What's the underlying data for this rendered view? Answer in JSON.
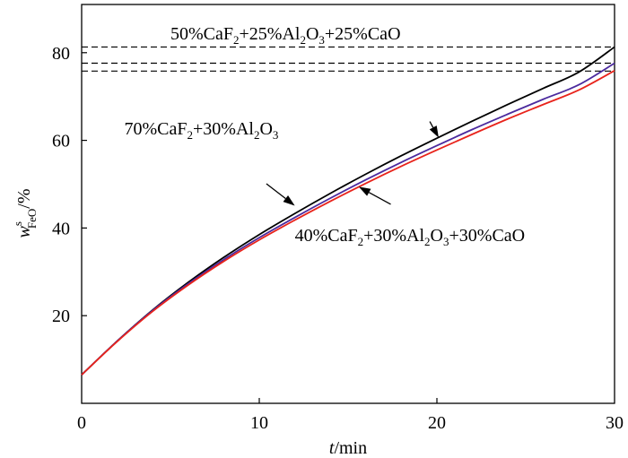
{
  "chart_data": {
    "type": "line",
    "xlabel": {
      "var": "t",
      "unit": "/min"
    },
    "ylabel": {
      "var": "w",
      "sup": "s",
      "sub": "FeO",
      "unit": "/%"
    },
    "xlim": [
      0,
      30
    ],
    "ylim": [
      0,
      91
    ],
    "xticks": [
      0,
      10,
      20,
      30
    ],
    "yticks": [
      20,
      40,
      60,
      80
    ],
    "x_tick_labels": [
      "0",
      "10",
      "20",
      "30"
    ],
    "y_tick_labels": [
      "20",
      "40",
      "60",
      "80"
    ],
    "grid": false,
    "series": [
      {
        "name": "70%CaF2+30%Al2O3",
        "color": "#000000",
        "x": [
          0,
          2,
          4,
          6,
          8,
          10,
          12,
          14,
          16,
          18,
          20,
          22,
          24,
          26,
          28,
          30
        ],
        "y": [
          6.5,
          14.2,
          21.3,
          27.6,
          33.3,
          38.5,
          43.3,
          47.9,
          52.3,
          56.5,
          60.5,
          64.4,
          68.2,
          71.9,
          75.6,
          81.3
        ]
      },
      {
        "name": "50%CaF2+25%Al2O3+25%CaO",
        "color": "#4b2a9e",
        "x": [
          0,
          2,
          4,
          6,
          8,
          10,
          12,
          14,
          16,
          18,
          20,
          22,
          24,
          26,
          28,
          30
        ],
        "y": [
          6.5,
          14.2,
          21.2,
          27.3,
          32.8,
          37.8,
          42.4,
          46.8,
          51.0,
          55.0,
          58.8,
          62.5,
          66.0,
          69.4,
          72.7,
          77.6
        ]
      },
      {
        "name": "40%CaF2+30%Al2O3+30%CaO",
        "color": "#e8231b",
        "x": [
          0,
          2,
          4,
          6,
          8,
          10,
          12,
          14,
          16,
          18,
          20,
          22,
          24,
          26,
          28,
          30
        ],
        "y": [
          6.5,
          14.1,
          21.0,
          27.0,
          32.4,
          37.3,
          41.8,
          46.1,
          50.2,
          54.1,
          57.8,
          61.4,
          64.9,
          68.2,
          71.5,
          75.9
        ]
      }
    ],
    "reference_lines": [
      81.3,
      77.6,
      75.8
    ],
    "annotations": [
      {
        "parts": [
          [
            "50%CaF",
            "n"
          ],
          [
            "2",
            "sub"
          ],
          [
            "+25%Al",
            "n"
          ],
          [
            "2",
            "sub"
          ],
          [
            "O",
            "n"
          ],
          [
            "3",
            "sub"
          ],
          [
            "+25%CaO",
            "n"
          ]
        ],
        "text_xy": [
          5.0,
          83.0
        ],
        "arrow_from": [
          19.6,
          64.3
        ],
        "arrow_to": [
          20.1,
          60.6
        ]
      },
      {
        "parts": [
          [
            "70%CaF",
            "n"
          ],
          [
            "2",
            "sub"
          ],
          [
            "+30%Al",
            "n"
          ],
          [
            "2",
            "sub"
          ],
          [
            "O",
            "n"
          ],
          [
            "3",
            "sub"
          ]
        ],
        "text_xy": [
          2.4,
          61.3
        ],
        "arrow_from": [
          10.4,
          50.1
        ],
        "arrow_to": [
          12.0,
          45.1
        ]
      },
      {
        "parts": [
          [
            "40%CaF",
            "n"
          ],
          [
            "2",
            "sub"
          ],
          [
            "+30%Al",
            "n"
          ],
          [
            "2",
            "sub"
          ],
          [
            "O",
            "n"
          ],
          [
            "3",
            "sub"
          ],
          [
            "+30%CaO",
            "n"
          ]
        ],
        "text_xy": [
          12.0,
          37.0
        ],
        "arrow_from": [
          17.4,
          45.4
        ],
        "arrow_to": [
          15.6,
          49.4
        ]
      }
    ]
  }
}
